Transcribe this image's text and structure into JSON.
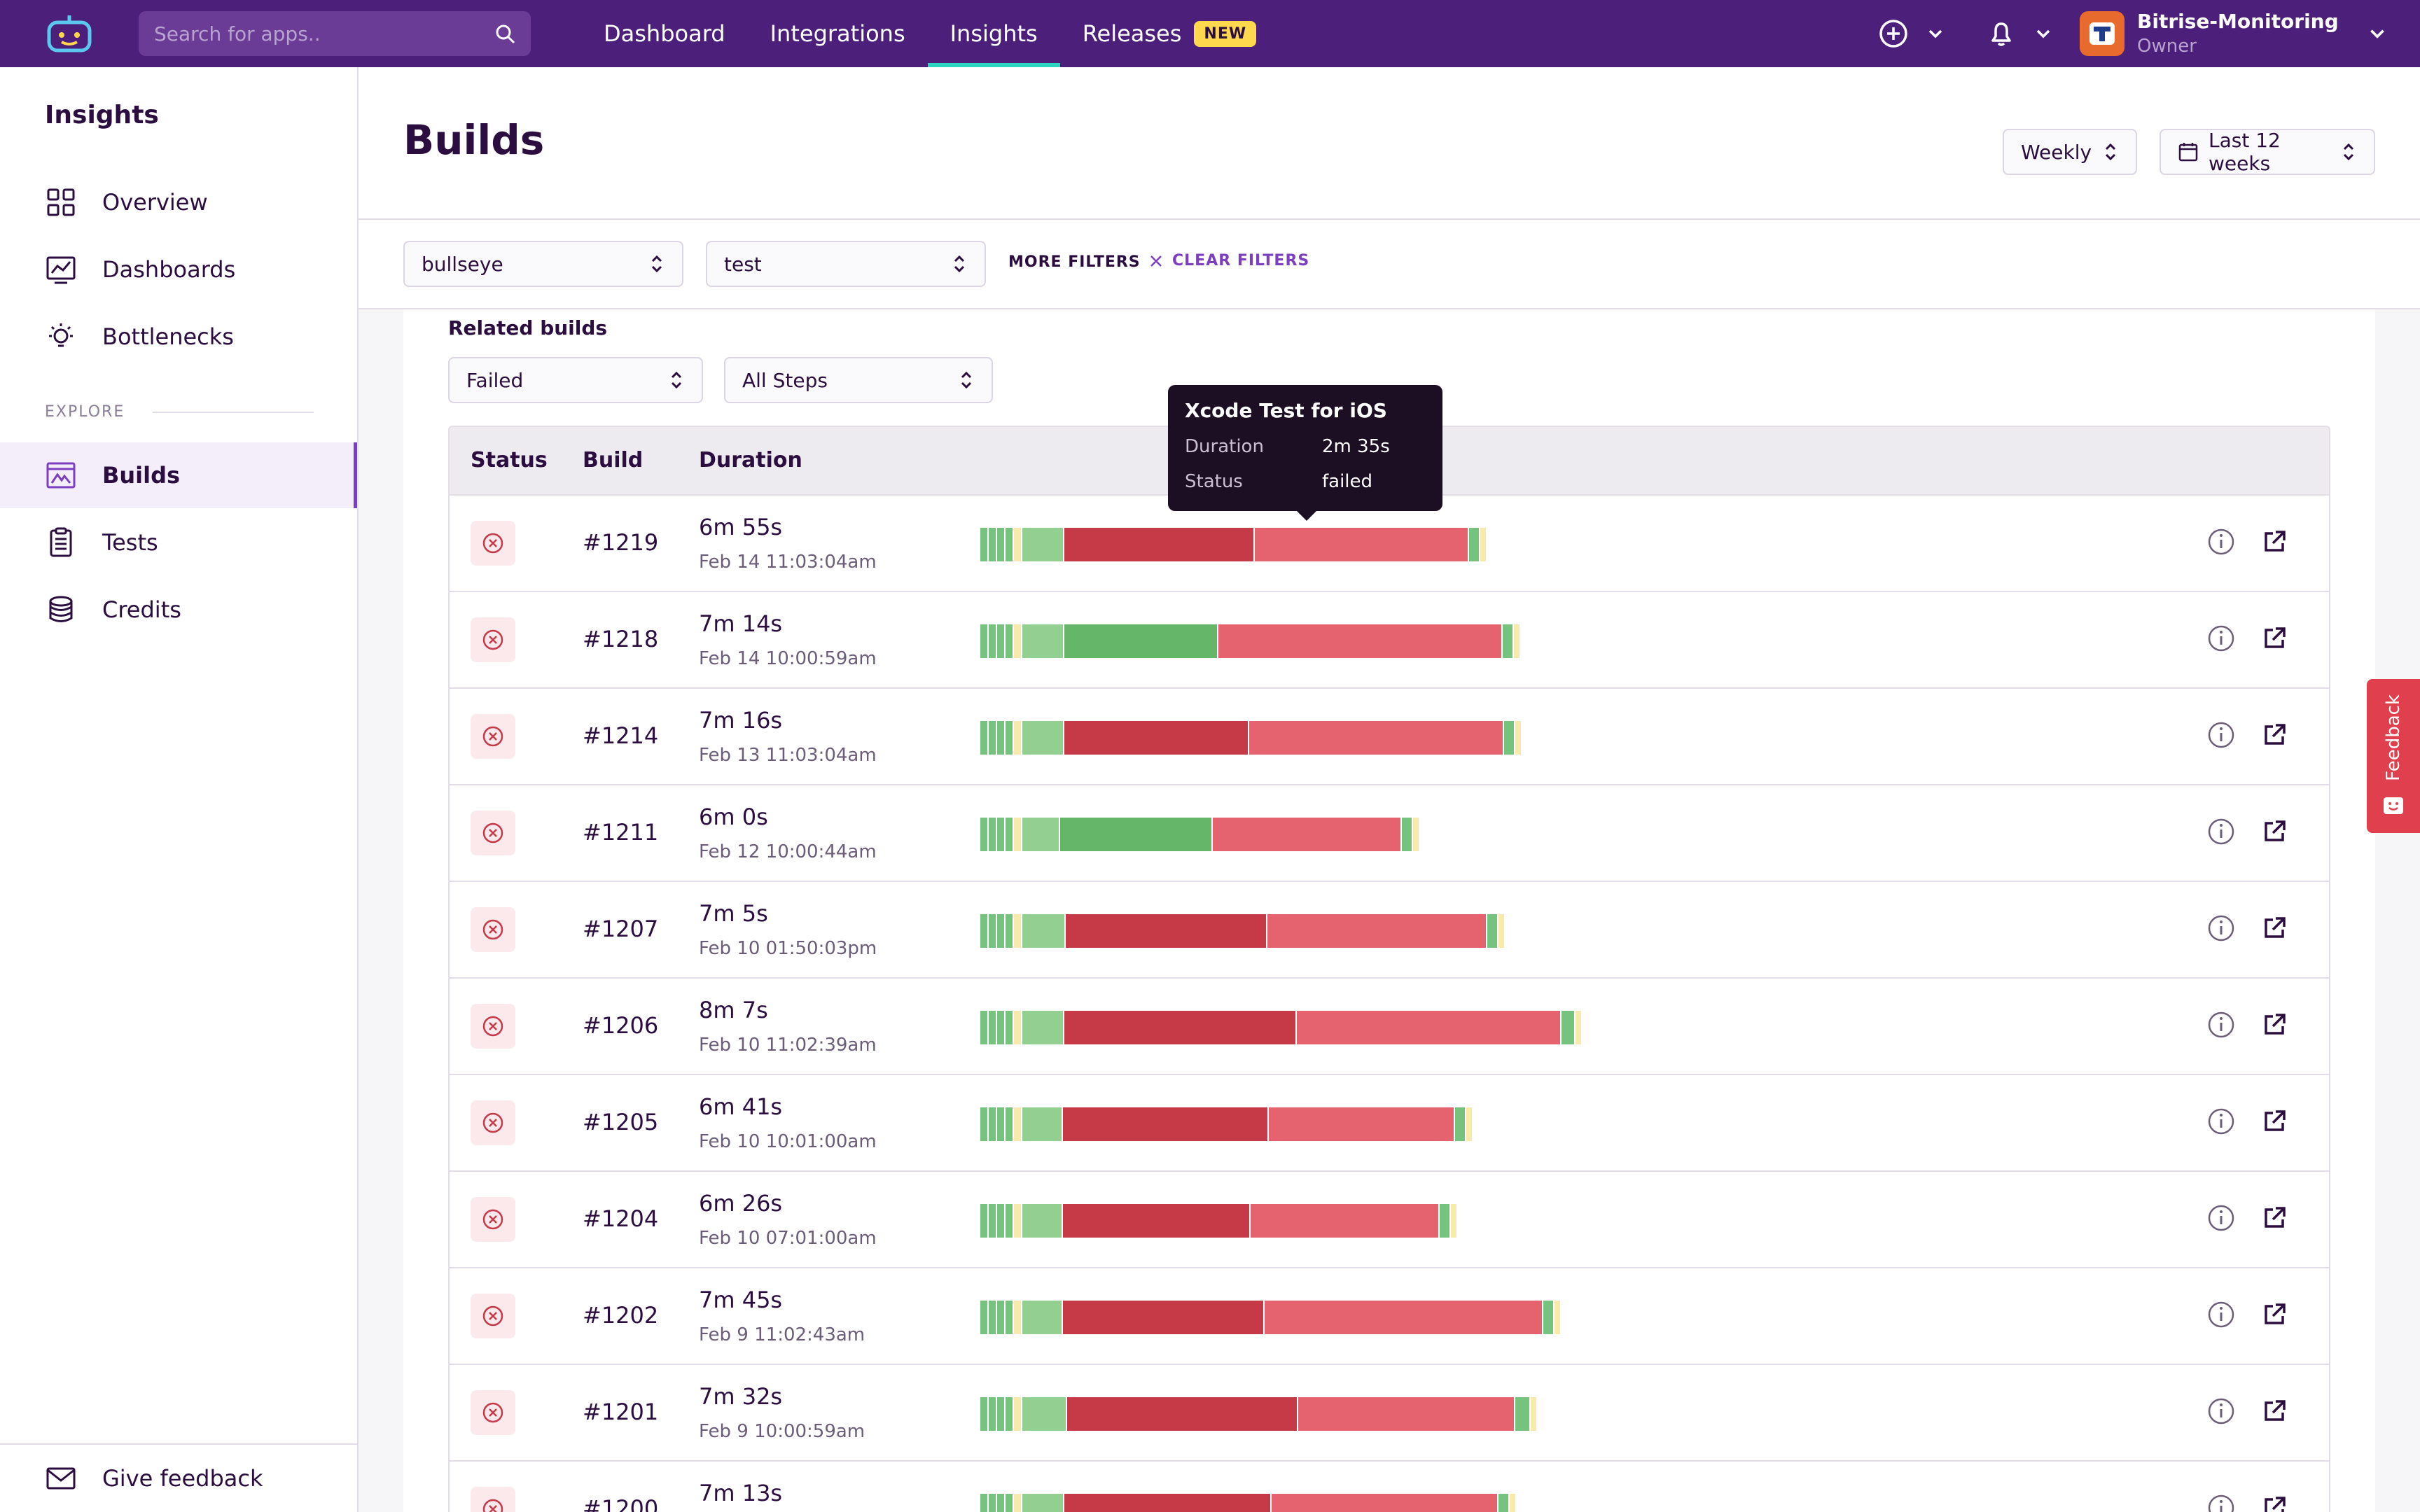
{
  "nav": {
    "search_placeholder": "Search for apps..",
    "links": [
      {
        "label": "Dashboard"
      },
      {
        "label": "Integrations"
      },
      {
        "label": "Insights",
        "active": true
      },
      {
        "label": "Releases",
        "badge": "NEW"
      }
    ],
    "account": {
      "name": "Bitrise-Monitoring",
      "role": "Owner"
    }
  },
  "sidebar": {
    "title": "Insights",
    "items": [
      {
        "label": "Overview",
        "icon": "grid-icon"
      },
      {
        "label": "Dashboards",
        "icon": "chart-icon"
      },
      {
        "label": "Bottlenecks",
        "icon": "bulb-icon"
      }
    ],
    "explore_label": "EXPLORE",
    "explore_items": [
      {
        "label": "Builds",
        "icon": "builds-icon",
        "active": true
      },
      {
        "label": "Tests",
        "icon": "clipboard-icon"
      },
      {
        "label": "Credits",
        "icon": "coins-icon"
      }
    ],
    "feedback_label": "Give feedback"
  },
  "header": {
    "title": "Builds",
    "period": "Weekly",
    "range": "Last 12 weeks"
  },
  "filters": {
    "app": "bullseye",
    "workflow": "test",
    "more_filters": "MORE FILTERS",
    "clear_filters": "CLEAR FILTERS"
  },
  "related": {
    "title": "Related builds",
    "status_filter": "Failed",
    "steps_filter": "All Steps"
  },
  "table": {
    "columns": [
      "Status",
      "Build",
      "Duration"
    ],
    "rows": [
      {
        "build": "#1219",
        "duration": "6m 55s",
        "date": "Feb 14 11:03:04am",
        "segments": [
          [
            "g",
            12
          ],
          [
            "g",
            12
          ],
          [
            "g",
            12
          ],
          [
            "g",
            12
          ],
          [
            "y",
            12
          ],
          [
            "lg",
            60
          ],
          [
            "r",
            272
          ],
          [
            "pr",
            306
          ],
          [
            "g",
            16
          ],
          [
            "y",
            10
          ]
        ]
      },
      {
        "build": "#1218",
        "duration": "7m 14s",
        "date": "Feb 14 10:00:59am",
        "segments": [
          [
            "g",
            12
          ],
          [
            "g",
            12
          ],
          [
            "g",
            12
          ],
          [
            "g",
            12
          ],
          [
            "y",
            12
          ],
          [
            "lg",
            60
          ],
          [
            "dg",
            220
          ],
          [
            "pr",
            406
          ],
          [
            "g",
            16
          ],
          [
            "y",
            10
          ]
        ]
      },
      {
        "build": "#1214",
        "duration": "7m 16s",
        "date": "Feb 13 11:03:04am",
        "segments": [
          [
            "g",
            12
          ],
          [
            "g",
            12
          ],
          [
            "g",
            12
          ],
          [
            "g",
            12
          ],
          [
            "y",
            12
          ],
          [
            "lg",
            60
          ],
          [
            "r",
            264
          ],
          [
            "pr",
            364
          ],
          [
            "g",
            16
          ],
          [
            "y",
            10
          ]
        ]
      },
      {
        "build": "#1211",
        "duration": "6m 0s",
        "date": "Feb 12 10:00:44am",
        "segments": [
          [
            "g",
            12
          ],
          [
            "g",
            12
          ],
          [
            "g",
            12
          ],
          [
            "g",
            12
          ],
          [
            "y",
            12
          ],
          [
            "lg",
            54
          ],
          [
            "dg",
            218
          ],
          [
            "pr",
            270
          ],
          [
            "g",
            16
          ],
          [
            "y",
            10
          ]
        ]
      },
      {
        "build": "#1207",
        "duration": "7m 5s",
        "date": "Feb 10 01:50:03pm",
        "segments": [
          [
            "g",
            12
          ],
          [
            "g",
            12
          ],
          [
            "g",
            12
          ],
          [
            "g",
            12
          ],
          [
            "y",
            12
          ],
          [
            "lg",
            62
          ],
          [
            "r",
            288
          ],
          [
            "pr",
            314
          ],
          [
            "g",
            16
          ],
          [
            "y",
            10
          ]
        ]
      },
      {
        "build": "#1206",
        "duration": "8m 7s",
        "date": "Feb 10 11:02:39am",
        "segments": [
          [
            "g",
            12
          ],
          [
            "g",
            12
          ],
          [
            "g",
            12
          ],
          [
            "g",
            12
          ],
          [
            "y",
            12
          ],
          [
            "lg",
            60
          ],
          [
            "r",
            332
          ],
          [
            "pr",
            378
          ],
          [
            "g",
            20
          ],
          [
            "y",
            10
          ]
        ]
      },
      {
        "build": "#1205",
        "duration": "6m 41s",
        "date": "Feb 10 10:01:00am",
        "segments": [
          [
            "g",
            12
          ],
          [
            "g",
            12
          ],
          [
            "g",
            12
          ],
          [
            "g",
            12
          ],
          [
            "y",
            12
          ],
          [
            "lg",
            58
          ],
          [
            "r",
            294
          ],
          [
            "pr",
            266
          ],
          [
            "g",
            16
          ],
          [
            "y",
            10
          ]
        ]
      },
      {
        "build": "#1204",
        "duration": "6m 26s",
        "date": "Feb 10 07:01:00am",
        "segments": [
          [
            "g",
            12
          ],
          [
            "g",
            12
          ],
          [
            "g",
            12
          ],
          [
            "g",
            12
          ],
          [
            "y",
            12
          ],
          [
            "lg",
            58
          ],
          [
            "r",
            268
          ],
          [
            "pr",
            270
          ],
          [
            "g",
            16
          ],
          [
            "y",
            10
          ]
        ]
      },
      {
        "build": "#1202",
        "duration": "7m 45s",
        "date": "Feb 9 11:02:43am",
        "segments": [
          [
            "g",
            12
          ],
          [
            "g",
            12
          ],
          [
            "g",
            12
          ],
          [
            "g",
            12
          ],
          [
            "y",
            12
          ],
          [
            "lg",
            58
          ],
          [
            "r",
            288
          ],
          [
            "pr",
            398
          ],
          [
            "g",
            16
          ],
          [
            "y",
            10
          ]
        ]
      },
      {
        "build": "#1201",
        "duration": "7m 32s",
        "date": "Feb 9 10:00:59am",
        "segments": [
          [
            "g",
            12
          ],
          [
            "g",
            12
          ],
          [
            "g",
            12
          ],
          [
            "g",
            12
          ],
          [
            "y",
            12
          ],
          [
            "lg",
            64
          ],
          [
            "r",
            330
          ],
          [
            "pr",
            310
          ],
          [
            "g",
            22
          ],
          [
            "y",
            10
          ]
        ]
      },
      {
        "build": "#1200",
        "duration": "7m 13s",
        "date": "",
        "segments": [
          [
            "g",
            12
          ],
          [
            "g",
            12
          ],
          [
            "g",
            12
          ],
          [
            "g",
            12
          ],
          [
            "y",
            12
          ],
          [
            "lg",
            60
          ],
          [
            "r",
            296
          ],
          [
            "pr",
            324
          ],
          [
            "g",
            16
          ],
          [
            "y",
            10
          ]
        ]
      }
    ]
  },
  "tooltip": {
    "title": "Xcode Test for iOS",
    "duration_label": "Duration",
    "duration_value": "2m 35s",
    "status_label": "Status",
    "status_value": "failed"
  },
  "feedback_tab": {
    "label": "Feedback"
  },
  "colors": {
    "g": "#76c27f",
    "lg": "#93cf91",
    "dg": "#66b66a",
    "y": "#f7ebab",
    "r": "#c63a48",
    "pr": "#e5636e",
    "brand": "#4b1f7a"
  }
}
